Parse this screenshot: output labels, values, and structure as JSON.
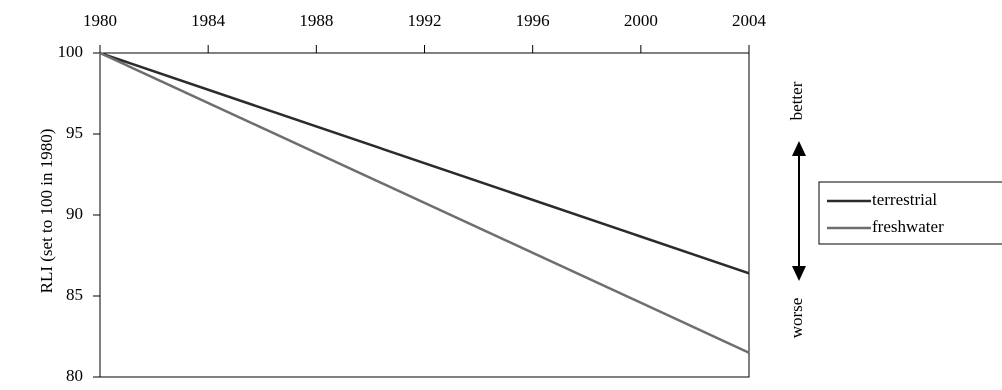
{
  "chart_data": {
    "type": "line",
    "title": "",
    "xlabel": "",
    "ylabel": "RLI (set to 100 in 1980)",
    "xlim": [
      1980,
      2004
    ],
    "ylim": [
      80,
      100
    ],
    "x_ticks": [
      1980,
      1984,
      1988,
      1992,
      1996,
      2000,
      2004
    ],
    "y_ticks": [
      80,
      85,
      90,
      95,
      100
    ],
    "x_axis_position": "top",
    "grid": false,
    "legend_position": "right",
    "series": [
      {
        "name": "terrestrial",
        "color": "#2b2b2b",
        "x": [
          1980,
          2004
        ],
        "y": [
          100,
          86.4
        ]
      },
      {
        "name": "freshwater",
        "color": "#6e6e6e",
        "x": [
          1980,
          2004
        ],
        "y": [
          100,
          81.5
        ]
      }
    ],
    "annotations": {
      "better": "better",
      "worse": "worse"
    }
  }
}
